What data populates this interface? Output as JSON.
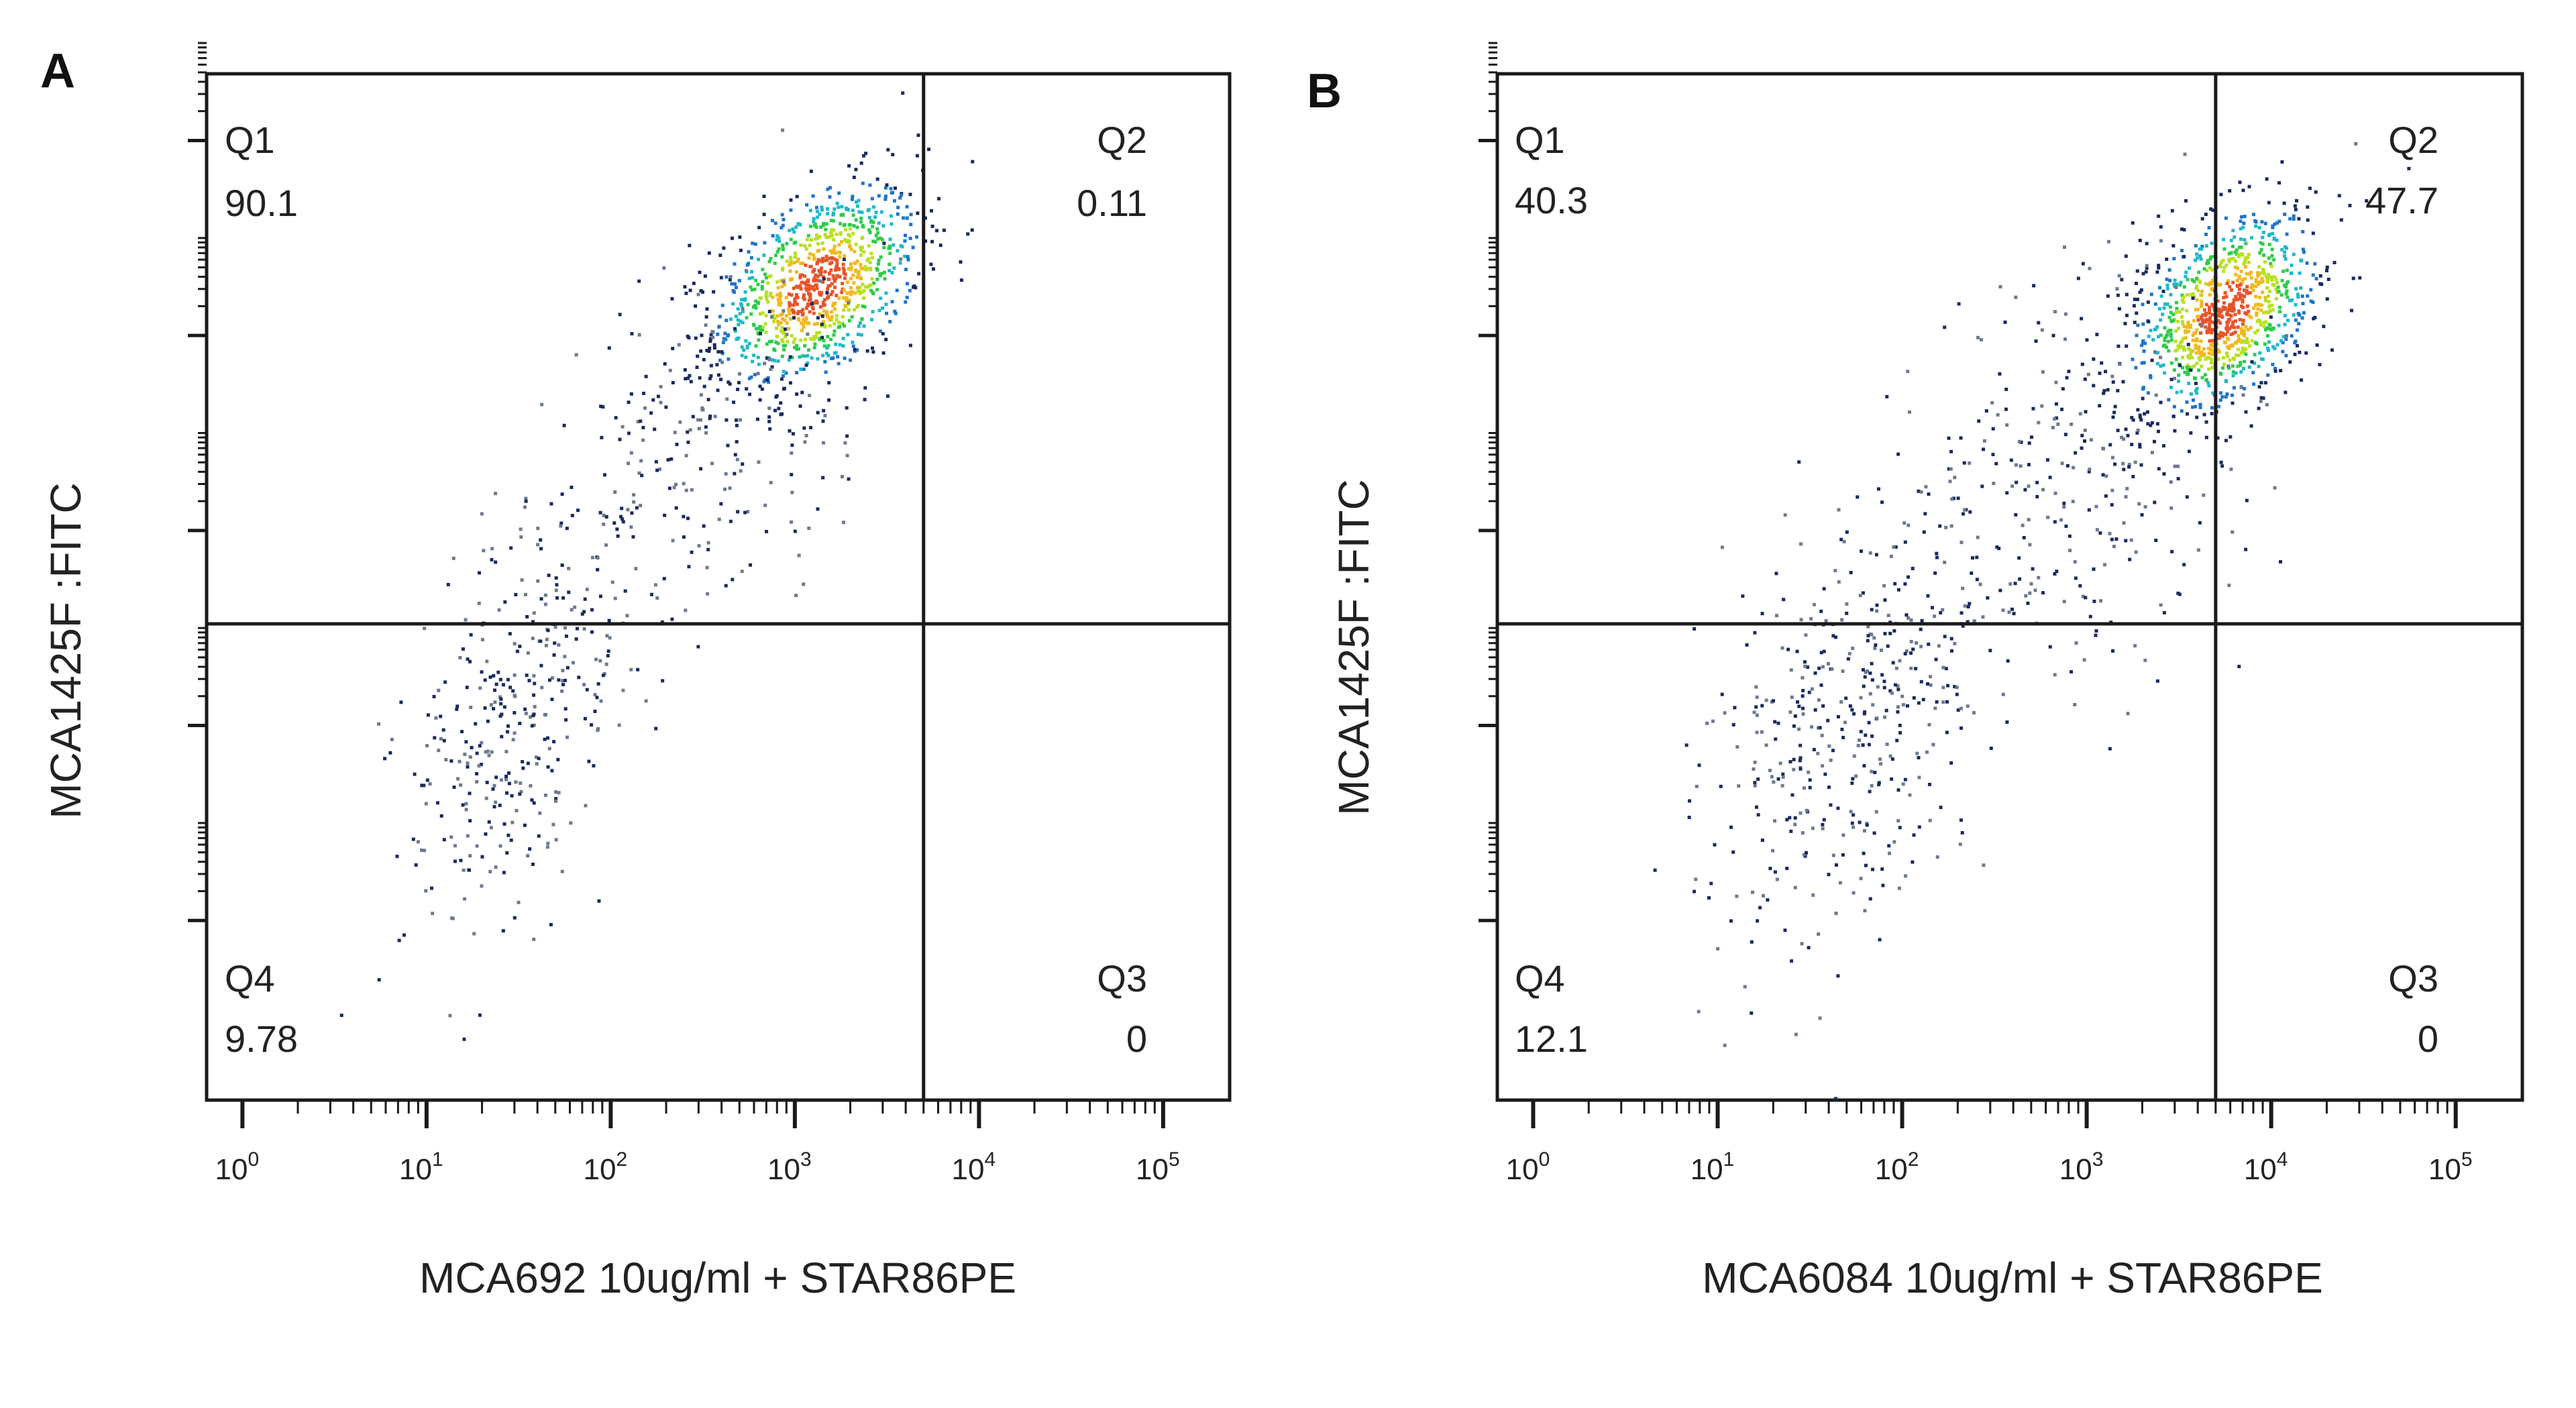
{
  "chart_data": [
    {
      "type": "scatter",
      "panel": "A",
      "xlabel": "MCA692 10ug/ml + STAR86PE",
      "ylabel": "MCA1425F :FITC",
      "x_scale": "log",
      "xlim": [
        1,
        100000
      ],
      "x_ticks": [
        {
          "base": "10",
          "exp": "0"
        },
        {
          "base": "10",
          "exp": "1"
        },
        {
          "base": "10",
          "exp": "2"
        },
        {
          "base": "10",
          "exp": "3"
        },
        {
          "base": "10",
          "exp": "4"
        },
        {
          "base": "10",
          "exp": "5"
        }
      ],
      "gate_x": 5000,
      "quadrants": [
        {
          "name": "Q1",
          "value": "90.1",
          "corner": "top-left"
        },
        {
          "name": "Q2",
          "value": "0.11",
          "corner": "top-right"
        },
        {
          "name": "Q4",
          "value": "9.78",
          "corner": "bottom-left"
        },
        {
          "name": "Q3",
          "value": "0",
          "corner": "bottom-right"
        }
      ],
      "populations": [
        {
          "x": 1300,
          "y_level": 0.795,
          "spread_x": 0.28,
          "spread_y": 0.045,
          "count": 950,
          "density": "high"
        },
        {
          "x": 350,
          "y_level": 0.66,
          "spread_x": 0.45,
          "spread_y": 0.08,
          "count": 260,
          "density": "low"
        },
        {
          "x": 30,
          "y_level": 0.37,
          "spread_x": 0.32,
          "spread_y": 0.09,
          "count": 360,
          "density": "low"
        }
      ]
    },
    {
      "type": "scatter",
      "panel": "B",
      "xlabel": "MCA6084 10ug/ml + STAR86PE",
      "ylabel": "MCA1425F :FITC",
      "x_scale": "log",
      "xlim": [
        1,
        100000
      ],
      "x_ticks": [
        {
          "base": "10",
          "exp": "0"
        },
        {
          "base": "10",
          "exp": "1"
        },
        {
          "base": "10",
          "exp": "2"
        },
        {
          "base": "10",
          "exp": "3"
        },
        {
          "base": "10",
          "exp": "4"
        },
        {
          "base": "10",
          "exp": "5"
        }
      ],
      "gate_x": 5000,
      "quadrants": [
        {
          "name": "Q1",
          "value": "40.3",
          "corner": "top-left"
        },
        {
          "name": "Q2",
          "value": "47.7",
          "corner": "top-right"
        },
        {
          "name": "Q4",
          "value": "12.1",
          "corner": "bottom-left"
        },
        {
          "name": "Q3",
          "value": "0",
          "corner": "bottom-right"
        }
      ],
      "populations": [
        {
          "x": 5500,
          "y_level": 0.77,
          "spread_x": 0.25,
          "spread_y": 0.045,
          "count": 950,
          "density": "high"
        },
        {
          "x": 800,
          "y_level": 0.6,
          "spread_x": 0.5,
          "spread_y": 0.1,
          "count": 330,
          "density": "low"
        },
        {
          "x": 50,
          "y_level": 0.37,
          "spread_x": 0.35,
          "spread_y": 0.1,
          "count": 420,
          "density": "low"
        }
      ]
    }
  ]
}
